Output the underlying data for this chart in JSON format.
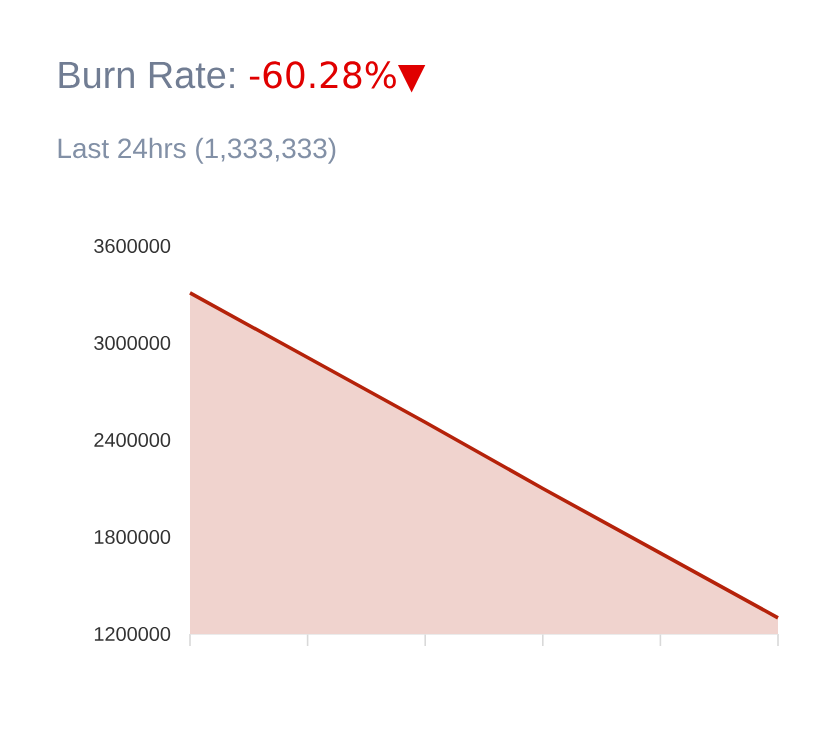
{
  "chart_data": {
    "type": "area",
    "title": "Burn Rate:",
    "subtitle": "Last 24hrs (1,333,333)",
    "annotations": [
      "-60.28%▼"
    ],
    "categories": [
      null,
      null,
      null,
      null,
      null,
      null
    ],
    "series": [
      {
        "color": "#b5220a",
        "values": [
          3310000,
          2910000,
          2510000,
          2100000,
          1700000,
          1300000
        ]
      }
    ],
    "ylim": [
      1200000,
      3600000
    ],
    "yticks": [
      1200000,
      1800000,
      2400000,
      3000000,
      3600000
    ],
    "tick_labels": "y"
  }
}
